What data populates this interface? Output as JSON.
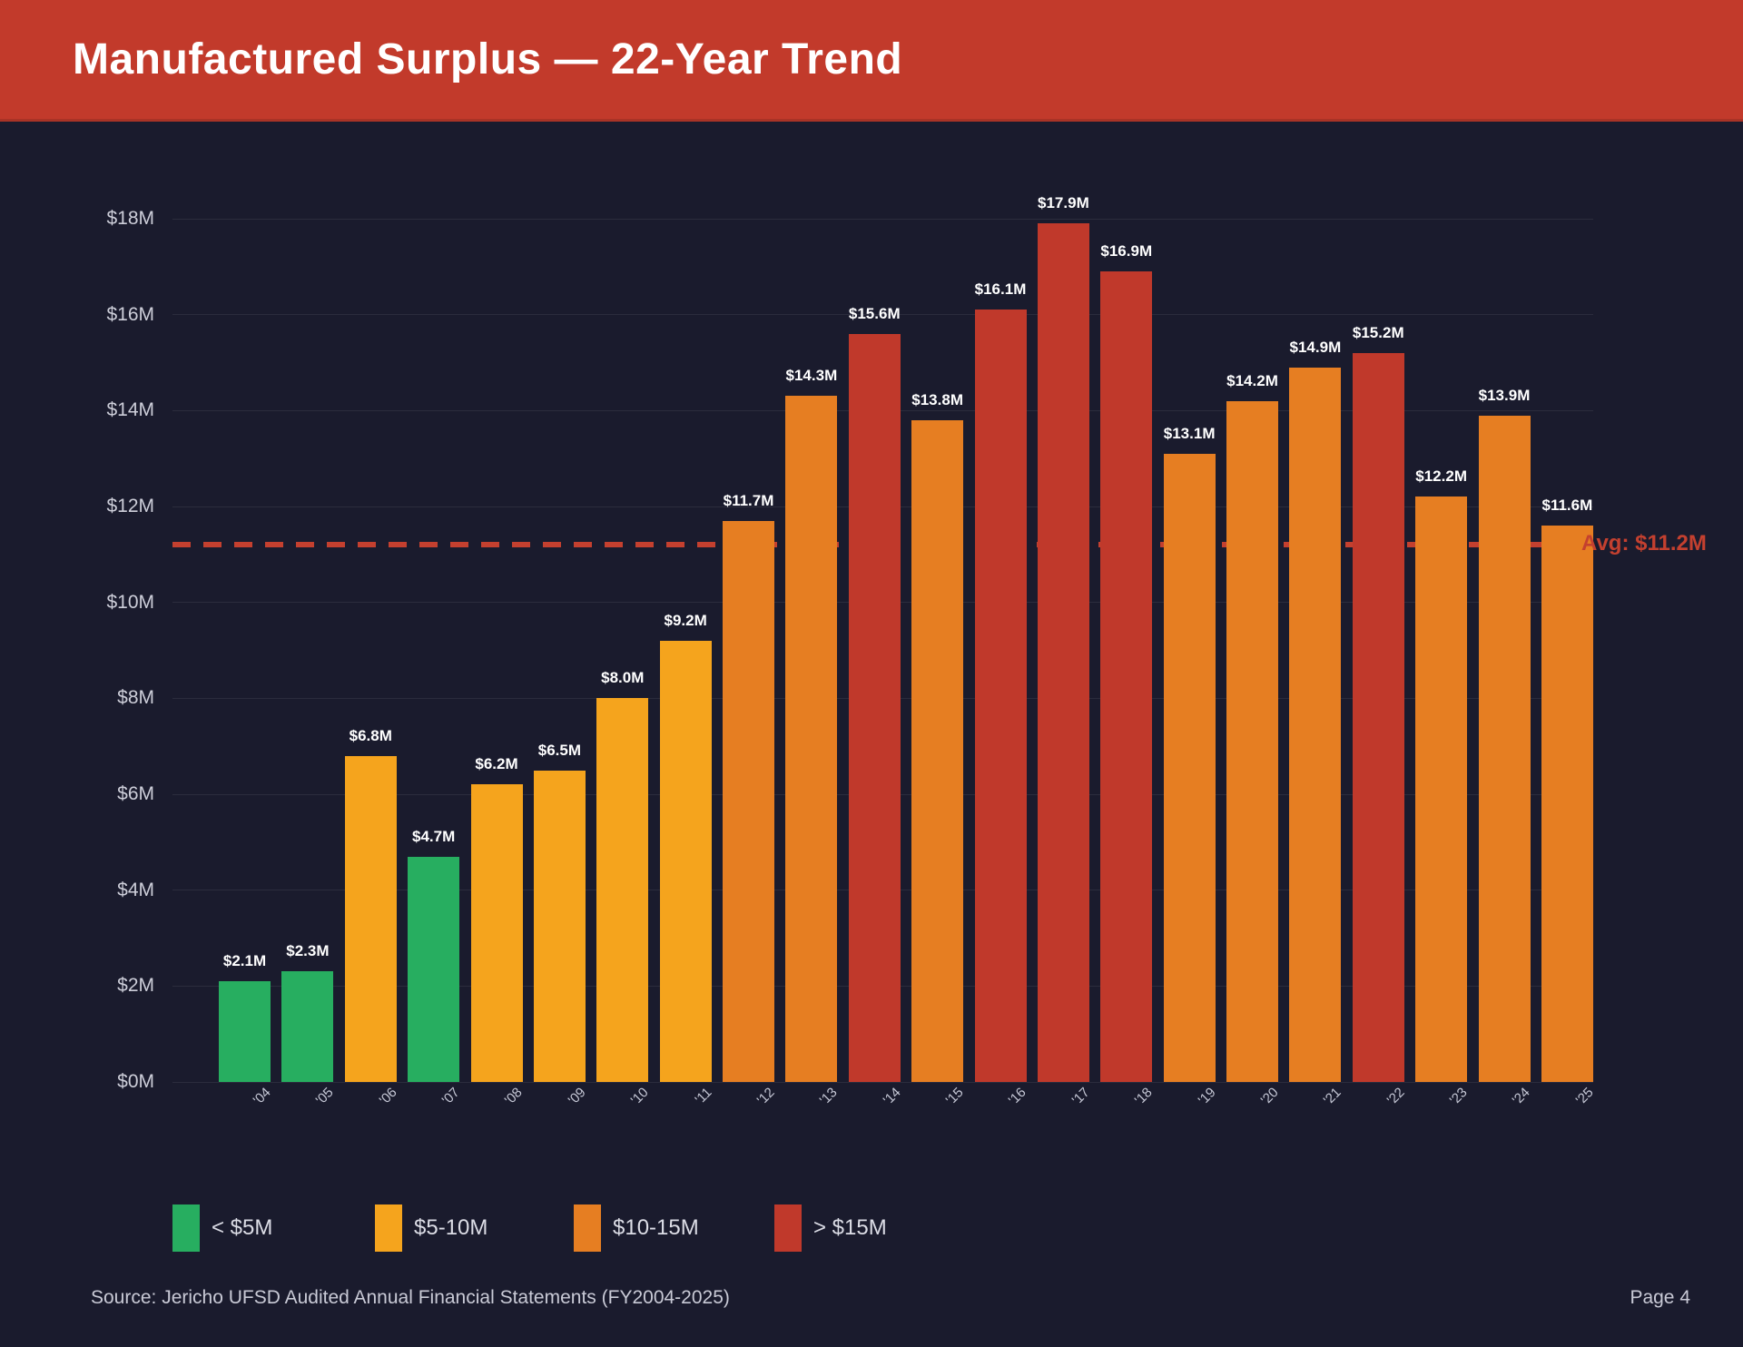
{
  "header": {
    "title": "Manufactured Surplus — 22-Year Trend"
  },
  "chart_data": {
    "type": "bar",
    "title": "Manufactured Surplus — 22-Year Trend",
    "categories": [
      "'04",
      "'05",
      "'06",
      "'07",
      "'08",
      "'09",
      "'10",
      "'11",
      "'12",
      "'13",
      "'14",
      "'15",
      "'16",
      "'17",
      "'18",
      "'19",
      "'20",
      "'21",
      "'22",
      "'23",
      "'24",
      "'25"
    ],
    "values": [
      2.1,
      2.3,
      6.8,
      4.7,
      6.2,
      6.5,
      8.0,
      9.2,
      11.7,
      14.3,
      15.6,
      13.8,
      16.1,
      17.9,
      16.9,
      13.1,
      14.2,
      14.9,
      15.2,
      12.2,
      13.9,
      11.6
    ],
    "value_labels": [
      "$2.1M",
      "$2.3M",
      "$6.8M",
      "$4.7M",
      "$6.2M",
      "$6.5M",
      "$8.0M",
      "$9.2M",
      "$11.7M",
      "$14.3M",
      "$15.6M",
      "$13.8M",
      "$16.1M",
      "$17.9M",
      "$16.9M",
      "$13.1M",
      "$14.2M",
      "$14.9M",
      "$15.2M",
      "$12.2M",
      "$13.9M",
      "$11.6M"
    ],
    "bar_colors": [
      "#27ae60",
      "#27ae60",
      "#f5a41d",
      "#27ae60",
      "#f5a41d",
      "#f5a41d",
      "#f5a41d",
      "#f5a41d",
      "#e67e22",
      "#e67e22",
      "#c0392b",
      "#e67e22",
      "#c0392b",
      "#c0392b",
      "#c0392b",
      "#e67e22",
      "#e67e22",
      "#e67e22",
      "#c0392b",
      "#e67e22",
      "#e67e22",
      "#e67e22"
    ],
    "xlabel": "",
    "ylabel": "",
    "ylim": [
      0,
      18
    ],
    "ytick_step": 2,
    "ytick_labels": [
      "$0M",
      "$2M",
      "$4M",
      "$6M",
      "$8M",
      "$10M",
      "$12M",
      "$14M",
      "$16M",
      "$18M"
    ],
    "grid": "horizontal",
    "average_line": {
      "value": 11.2,
      "label": "Avg: $11.2M",
      "color": "#c4402f",
      "style": "dashed"
    },
    "legend_position": "bottom-left",
    "legend": [
      {
        "label": "< $5M",
        "color": "#27ae60"
      },
      {
        "label": "$5-10M",
        "color": "#f5a41d"
      },
      {
        "label": "$10-15M",
        "color": "#e67e22"
      },
      {
        "label": "> $15M",
        "color": "#c0392b"
      }
    ]
  },
  "colors": {
    "background": "#1a1b2d",
    "header_band": "#c23a2b",
    "gridline": "rgba(255,255,255,0.08)"
  },
  "footer": {
    "source": "Source: Jericho UFSD Audited Annual Financial Statements (FY2004-2025)",
    "page": "Page 4"
  }
}
